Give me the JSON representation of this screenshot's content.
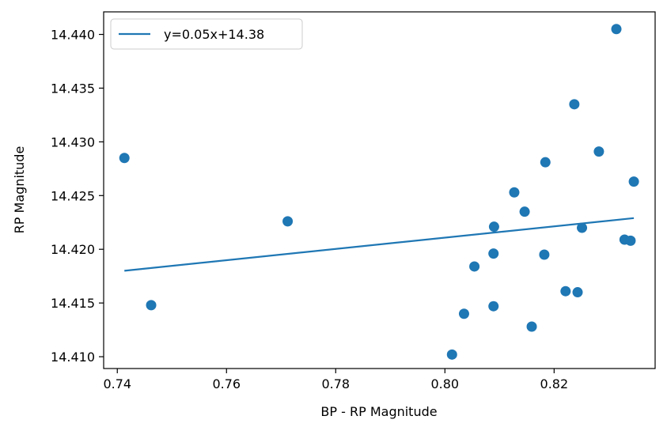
{
  "chart_data": {
    "type": "scatter",
    "title": "",
    "xlabel": "BP - RP Magnitude",
    "ylabel": "RP Magnitude",
    "xlim": [
      0.7375,
      0.8385
    ],
    "ylim": [
      14.4421,
      14.4089
    ],
    "y_inverted": true,
    "x_ticks": [
      0.74,
      0.76,
      0.78,
      0.8,
      0.82
    ],
    "x_tick_labels": [
      "0.74",
      "0.76",
      "0.78",
      "0.80",
      "0.82"
    ],
    "y_ticks": [
      14.41,
      14.415,
      14.42,
      14.425,
      14.43,
      14.435,
      14.44
    ],
    "y_tick_labels": [
      "14.410",
      "14.415",
      "14.420",
      "14.425",
      "14.430",
      "14.435",
      "14.440"
    ],
    "grid": false,
    "legend_position": "top-left",
    "color": "#1f77b4",
    "points": {
      "x": [
        0.7413,
        0.7462,
        0.7712,
        0.8013,
        0.8035,
        0.8054,
        0.8089,
        0.8089,
        0.809,
        0.8127,
        0.8146,
        0.8159,
        0.8182,
        0.8184,
        0.8221,
        0.8237,
        0.8243,
        0.8251,
        0.8282,
        0.8314,
        0.8329,
        0.834,
        0.8346
      ],
      "y": [
        14.4285,
        14.4148,
        14.4226,
        14.4102,
        14.414,
        14.4184,
        14.4147,
        14.4196,
        14.4221,
        14.4253,
        14.4235,
        14.4128,
        14.4195,
        14.4281,
        14.4161,
        14.4335,
        14.416,
        14.422,
        14.4291,
        14.4405,
        14.4209,
        14.4208,
        14.4263
      ]
    },
    "fit_line": {
      "label": "y=0.05x+14.38",
      "x": [
        0.7413,
        0.8346
      ],
      "y": [
        14.418,
        14.4229
      ]
    }
  }
}
